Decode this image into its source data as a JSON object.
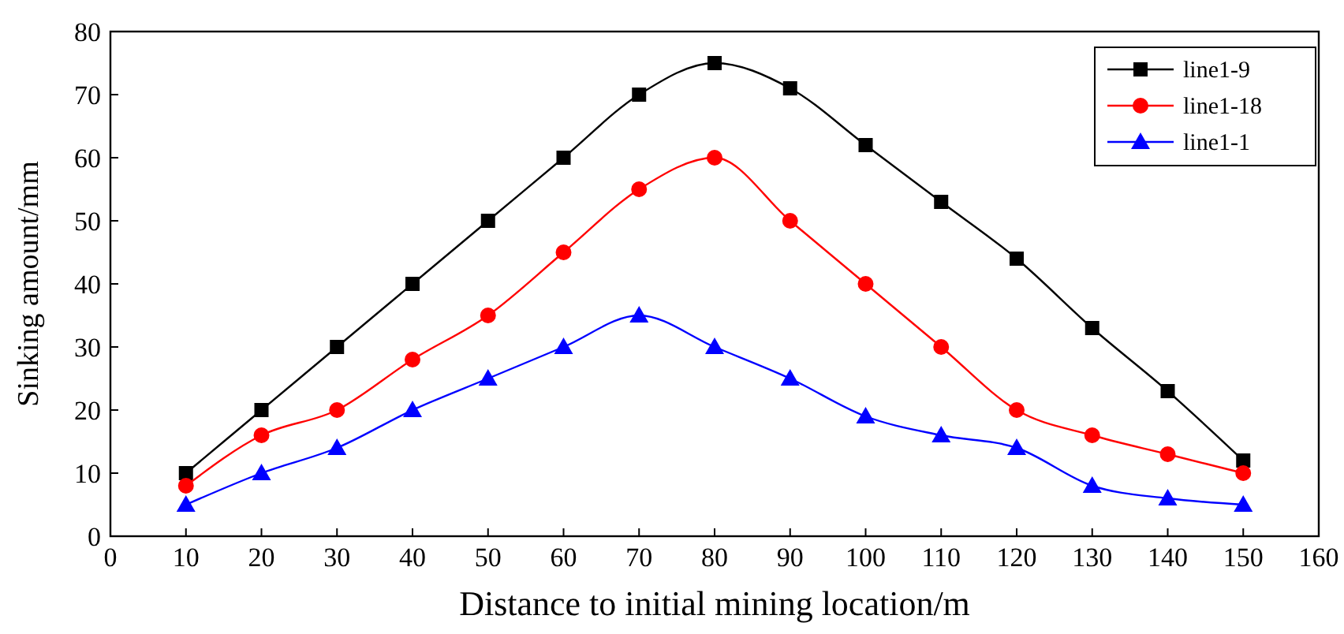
{
  "chart_data": {
    "type": "line",
    "xlabel": "Distance to initial mining location/m",
    "ylabel": "Sinking amount/mm",
    "x": [
      10,
      20,
      30,
      40,
      50,
      60,
      70,
      80,
      90,
      100,
      110,
      120,
      130,
      140,
      150
    ],
    "xlim": [
      0,
      160
    ],
    "xticks": [
      0,
      10,
      20,
      30,
      40,
      50,
      60,
      70,
      80,
      90,
      100,
      110,
      120,
      130,
      140,
      150,
      160
    ],
    "ylim": [
      0,
      80
    ],
    "yticks": [
      0,
      10,
      20,
      30,
      40,
      50,
      60,
      70,
      80
    ],
    "grid": false,
    "legend": "top right",
    "series": [
      {
        "name": "line1-9",
        "color": "#000000",
        "marker": "square",
        "values": [
          10,
          20,
          30,
          40,
          50,
          60,
          70,
          75,
          71,
          62,
          53,
          44,
          33,
          23,
          12
        ]
      },
      {
        "name": "line1-18",
        "color": "#ff0000",
        "marker": "circle",
        "values": [
          8,
          16,
          20,
          28,
          35,
          45,
          55,
          60,
          50,
          40,
          30,
          20,
          16,
          13,
          10
        ]
      },
      {
        "name": "line1-1",
        "color": "#0000ff",
        "marker": "triangle",
        "values": [
          5,
          10,
          14,
          20,
          25,
          30,
          35,
          30,
          25,
          19,
          16,
          14,
          8,
          6,
          5
        ]
      }
    ]
  }
}
